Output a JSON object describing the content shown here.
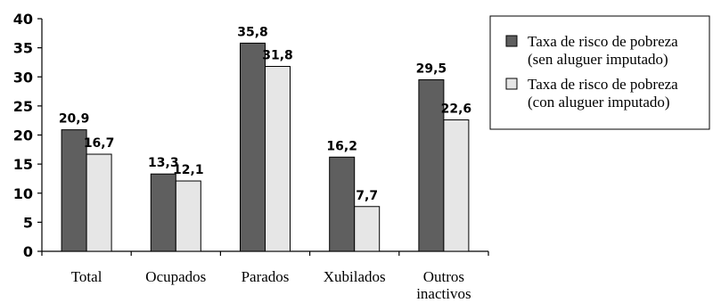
{
  "chart_data": {
    "type": "bar",
    "categories": [
      [
        "Total"
      ],
      [
        "Ocupados"
      ],
      [
        "Parados"
      ],
      [
        "Xubilados"
      ],
      [
        "Outros",
        "inactivos"
      ]
    ],
    "series": [
      {
        "name": [
          "Taxa de risco de pobreza",
          "(sen aluguer imputado)"
        ],
        "values": [
          20.9,
          13.3,
          35.8,
          16.2,
          29.5
        ],
        "labels": [
          "20,9",
          "13,3",
          "35,8",
          "16,2",
          "29,5"
        ],
        "color": "#5f5f5f"
      },
      {
        "name": [
          "Taxa de risco de pobreza",
          "(con aluguer imputado)"
        ],
        "values": [
          16.7,
          12.1,
          31.8,
          7.7,
          22.6
        ],
        "labels": [
          "16,7",
          "12,1",
          "31,8",
          "7,7",
          "22,6"
        ],
        "color": "#e6e6e6"
      }
    ],
    "yticks": [
      0,
      5,
      10,
      15,
      20,
      25,
      30,
      35,
      40
    ],
    "ylim": [
      0,
      40
    ],
    "grid": false,
    "legend": "right"
  }
}
